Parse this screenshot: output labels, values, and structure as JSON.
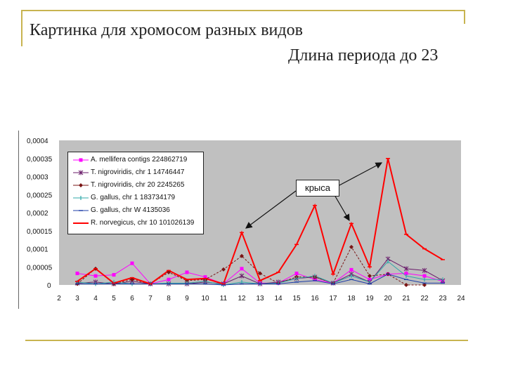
{
  "slide": {
    "title_line1": "Картинка для хромосом разных видов",
    "title_line2": "Длина периода до 23"
  },
  "chart_data": {
    "type": "line",
    "x": [
      2,
      3,
      4,
      5,
      6,
      7,
      8,
      9,
      10,
      11,
      12,
      13,
      14,
      15,
      16,
      17,
      18,
      19,
      20,
      21,
      22,
      23
    ],
    "x_ticks": [
      "2",
      "3",
      "4",
      "5",
      "6",
      "7",
      "8",
      "9",
      "10",
      "11",
      "12",
      "13",
      "14",
      "15",
      "16",
      "17",
      "18",
      "19",
      "20",
      "21",
      "22",
      "23",
      "24"
    ],
    "y_ticks": [
      "0",
      "0,00005",
      "0,0001",
      "0,00015",
      "0,0002",
      "0,00025",
      "0,0003",
      "0,00035",
      "0,0004"
    ],
    "ylim": [
      0,
      0.0004
    ],
    "grid": false,
    "legend_position": "top-left",
    "annotation": "крыса",
    "series": [
      {
        "name": "A. mellifera contigs 224862719",
        "color": "#ff00ff",
        "marker": "square",
        "values": [
          null,
          3.2e-05,
          2.5e-05,
          2.8e-05,
          6e-05,
          3e-06,
          1.5e-05,
          3.5e-05,
          2.2e-05,
          3e-06,
          4.5e-05,
          5e-06,
          5e-06,
          3.2e-05,
          1.5e-05,
          5e-06,
          4.2e-05,
          1.5e-05,
          3e-05,
          3.2e-05,
          2.5e-05,
          1e-05
        ]
      },
      {
        "name": "T. nigroviridis, chr 1 14746447",
        "color": "#6a1b6a",
        "marker": "asterisk",
        "values": [
          null,
          5e-06,
          8e-06,
          3e-06,
          1e-05,
          3e-06,
          3e-06,
          3e-06,
          8e-06,
          3e-06,
          2.5e-05,
          3e-06,
          8e-06,
          1.8e-05,
          2.2e-05,
          5e-06,
          3e-05,
          8e-06,
          7.2e-05,
          4.5e-05,
          4e-05,
          1.2e-05
        ]
      },
      {
        "name": "T. nigroviridis, chr 20 2245265",
        "color": "#7a1414",
        "marker": "diamond",
        "values": [
          null,
          3e-06,
          4.5e-05,
          3e-06,
          1.5e-05,
          3e-06,
          3.5e-05,
          1.2e-05,
          1.5e-05,
          4.3e-05,
          8e-05,
          3.2e-05,
          5e-06,
          2.2e-05,
          2.2e-05,
          5e-06,
          0.000105,
          2.5e-05,
          3e-05,
          0.0,
          0.0,
          null
        ]
      },
      {
        "name": "G. gallus, chr 1 183734179",
        "color": "#2fa8a8",
        "marker": "tick",
        "values": [
          null,
          8e-06,
          3e-06,
          8e-06,
          3e-06,
          3e-06,
          5e-06,
          5e-06,
          1e-05,
          0.0,
          8e-06,
          3e-06,
          5e-06,
          1.8e-05,
          2.5e-05,
          5e-06,
          2.5e-05,
          8e-06,
          6.5e-05,
          2.5e-05,
          1.5e-05,
          1.5e-05
        ]
      },
      {
        "name": "G. gallus, chr W 4135036",
        "color": "#1f3fa8",
        "marker": "dash",
        "values": [
          null,
          3e-06,
          3e-06,
          3e-06,
          3e-06,
          3e-06,
          3e-06,
          3e-06,
          3e-06,
          0.0,
          3e-06,
          3e-06,
          3e-06,
          8e-06,
          1.2e-05,
          3e-06,
          1.5e-05,
          3e-06,
          3e-05,
          1.5e-05,
          5e-06,
          5e-06
        ]
      },
      {
        "name": "R. norvegicus, chr 10 101026139",
        "color": "#ff0000",
        "marker": "dash",
        "values": [
          null,
          1e-05,
          4.5e-05,
          5e-06,
          2e-05,
          3e-06,
          4e-05,
          1.5e-05,
          1.8e-05,
          3e-06,
          0.000145,
          1.2e-05,
          3.5e-05,
          0.000112,
          0.00022,
          3e-05,
          0.00017,
          5e-05,
          0.00035,
          0.00014,
          0.0001,
          7e-05
        ]
      }
    ]
  }
}
